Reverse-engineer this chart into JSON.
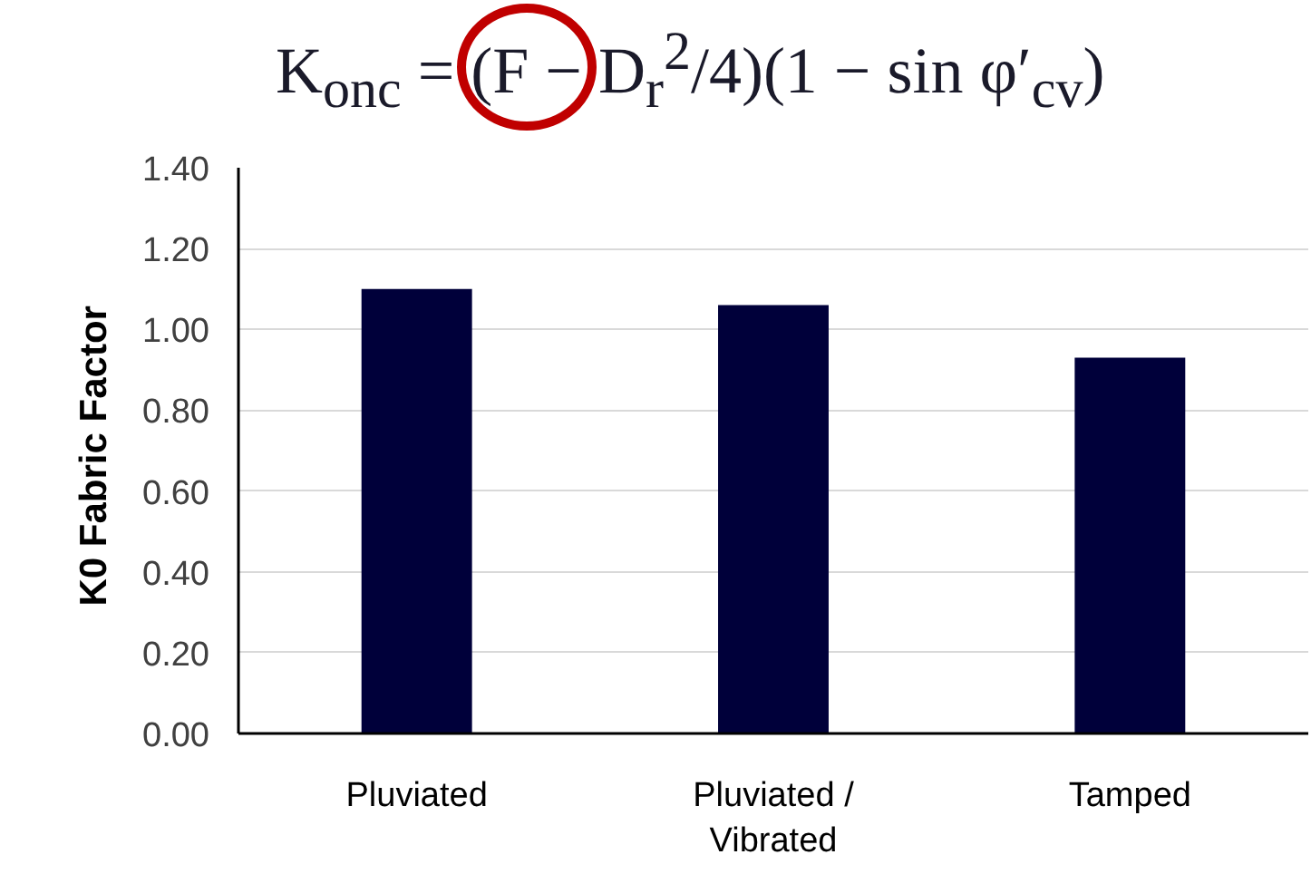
{
  "chart_data": {
    "type": "bar",
    "annotations": [
      "K$_{onc}$ = (F − D$_{r}$$^{2}$/4)(1 − sin φ′$_{cv}$)"
    ],
    "ylabel": "K0  Fabric Factor",
    "categories": [
      "Pluviated",
      "Pluviated / Vibrated",
      "Tamped"
    ],
    "values": [
      1.1,
      1.06,
      0.93
    ],
    "color": "#00003a",
    "ylim": [
      0,
      1.4
    ],
    "yticks": [
      {
        "value": 0,
        "label": "0.00"
      },
      {
        "value": 0.2,
        "label": "0.20"
      },
      {
        "value": 0.4,
        "label": "0.40"
      },
      {
        "value": 0.6,
        "label": "0.60"
      },
      {
        "value": 0.8,
        "label": "0.80"
      },
      {
        "value": 1,
        "label": "1.00"
      },
      {
        "value": 1.2,
        "label": "1.20"
      },
      {
        "value": 1.4,
        "label": "1.40"
      }
    ],
    "grid": "y"
  }
}
